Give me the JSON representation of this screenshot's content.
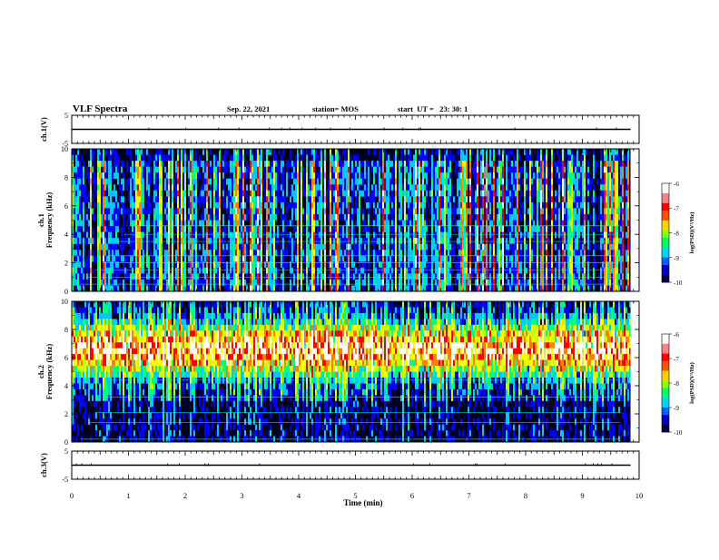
{
  "header": {
    "title": "VLF Spectra",
    "date": "Sep. 22, 2021",
    "station": "station= MOS",
    "start": "start  UT =   23: 30: 1"
  },
  "chart_data": [
    {
      "type": "line",
      "panel": "ch1-waveform",
      "ylabel": "ch.1(V)",
      "ylim": [
        -5,
        5
      ],
      "yticks": [
        "5",
        "-5"
      ],
      "series": [
        {
          "x": [
            0,
            9.85
          ],
          "values": [
            0,
            0
          ]
        }
      ]
    },
    {
      "type": "heatmap",
      "panel": "ch1-spectrogram",
      "ylabel": "ch.1\nFrequency (kHz)",
      "ylim": [
        0,
        10
      ],
      "yticks": [
        "0",
        "2",
        "4",
        "6",
        "8",
        "10"
      ],
      "xlim": [
        0,
        9.85
      ],
      "colorbar": {
        "label": "log(PSD)(V²/Hz)",
        "ticks": [
          "-6",
          "-7",
          "-8",
          "-9",
          "-10"
        ],
        "range": [
          -10,
          -6
        ]
      }
    },
    {
      "type": "heatmap",
      "panel": "ch2-spectrogram",
      "ylabel": "ch.2\nFrequency (kHz)",
      "ylim": [
        0,
        10
      ],
      "yticks": [
        "0",
        "2",
        "4",
        "6",
        "8",
        "10"
      ],
      "xlim": [
        0,
        9.85
      ],
      "colorbar": {
        "label": "log(PSD)(V²/Hz)",
        "ticks": [
          "-6",
          "-7",
          "-8",
          "-9",
          "-10"
        ],
        "range": [
          -10,
          -6
        ]
      }
    },
    {
      "type": "line",
      "panel": "ch3-waveform",
      "ylabel": "ch.3(V)",
      "ylim": [
        -5,
        5
      ],
      "yticks": [
        "5",
        "-5"
      ],
      "series": [
        {
          "x": [
            0,
            9.85
          ],
          "values": [
            0,
            0
          ]
        }
      ]
    }
  ],
  "xaxis": {
    "label": "Time (min)",
    "range": [
      0,
      10
    ],
    "ticks": [
      "0",
      "1",
      "2",
      "3",
      "4",
      "5",
      "6",
      "7",
      "8",
      "9",
      "10"
    ]
  },
  "colors": {
    "scale": [
      "#00008b",
      "#0000ff",
      "#00c8ff",
      "#00ff80",
      "#c8ff00",
      "#ffff00",
      "#ff8000",
      "#ff0000",
      "#ffffff"
    ]
  }
}
